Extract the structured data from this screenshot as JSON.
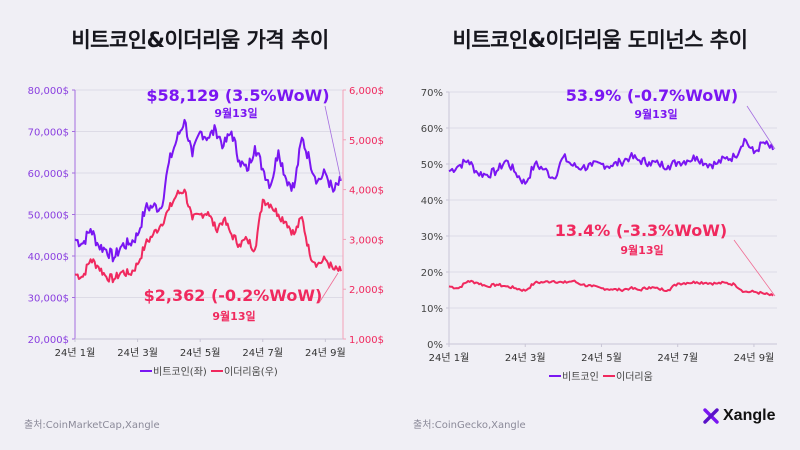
{
  "colors": {
    "bitcoin": "#7a16f2",
    "ethereum": "#f0295e",
    "background": "#f0eff5",
    "grid": "#dddbe6",
    "axis": "#c9c6d6"
  },
  "footer": {
    "source_left": "출처:CoinMarketCap,Xangle",
    "source_right": "출처:CoinGecko,Xangle",
    "logo_icon": "x-logo-icon",
    "logo_text": "Xangle"
  },
  "chart_data": [
    {
      "type": "line",
      "title": "비트코인&이더리움 가격 추이",
      "x_tick_labels": [
        "24년 1월",
        "24년 3월",
        "24년 5월",
        "24년 7월",
        "24년 9월"
      ],
      "x_range": [
        "2024-01-01",
        "2024-09-13"
      ],
      "y_left": {
        "label": "비트코인",
        "range": [
          20000,
          80000
        ],
        "ticks": [
          "20,000$",
          "30,000$",
          "40,000$",
          "50,000$",
          "60,000$",
          "70,000$",
          "80,000$"
        ]
      },
      "y_right": {
        "label": "이더리움",
        "range": [
          1000,
          6000
        ],
        "ticks": [
          "1,000$",
          "2,000$",
          "3,000$",
          "4,000$",
          "5,000$",
          "6,000$"
        ]
      },
      "grid": true,
      "legend_position": "bottom-center",
      "legend": [
        "비트코인(좌)",
        "이더리움(우)"
      ],
      "series": [
        {
          "name": "비트코인(좌)",
          "axis": "left",
          "x": [
            0,
            0.25,
            0.5,
            0.75,
            1,
            1.25,
            1.5,
            1.75,
            2,
            2.25,
            2.5,
            2.75,
            3,
            3.25,
            3.5,
            3.75,
            4,
            4.25,
            4.5,
            4.75,
            5,
            5.25,
            5.5,
            5.75,
            6,
            6.25,
            6.5,
            6.75,
            7,
            7.25,
            7.5,
            7.75,
            8,
            8.25,
            8.5
          ],
          "values": [
            44000,
            43000,
            46500,
            42500,
            41500,
            39500,
            42500,
            43000,
            45000,
            51500,
            52000,
            51500,
            62500,
            68000,
            72800,
            64000,
            70000,
            68500,
            70500,
            66500,
            70000,
            63000,
            60500,
            66500,
            61000,
            57000,
            65500,
            58500,
            56500,
            68500,
            63000,
            58000,
            60000,
            55500,
            58129
          ]
        },
        {
          "name": "이더리움(우)",
          "axis": "right",
          "x": [
            0,
            0.25,
            0.5,
            0.75,
            1,
            1.25,
            1.5,
            1.75,
            2,
            2.25,
            2.5,
            2.75,
            3,
            3.25,
            3.5,
            3.75,
            4,
            4.25,
            4.5,
            4.75,
            5,
            5.25,
            5.5,
            5.75,
            6,
            6.25,
            6.5,
            6.75,
            7,
            7.25,
            7.5,
            7.75,
            8,
            8.25,
            8.5
          ],
          "values": [
            2300,
            2250,
            2600,
            2450,
            2250,
            2200,
            2350,
            2300,
            2500,
            2900,
            3100,
            3300,
            3600,
            3900,
            4000,
            3400,
            3500,
            3550,
            3200,
            3400,
            3100,
            2900,
            3000,
            2800,
            3800,
            3700,
            3500,
            3350,
            3100,
            3450,
            2700,
            2500,
            2600,
            2400,
            2362
          ]
        }
      ],
      "annotations": [
        {
          "series": "비트코인(좌)",
          "text": "$58,129 (3.5%WoW)",
          "date": "9월13일"
        },
        {
          "series": "이더리움(우)",
          "text": "$2,362 (-0.2%WoW)",
          "date": "9월13일"
        }
      ]
    },
    {
      "type": "line",
      "title": "비트코인&이더리움 도미넌스 추이",
      "x_tick_labels": [
        "24년 1월",
        "24년 3월",
        "24년 5월",
        "24년 7월",
        "24년 9월"
      ],
      "x_range": [
        "2024-01-01",
        "2024-09-13"
      ],
      "y_left": {
        "label": "도미넌스",
        "range": [
          0,
          70
        ],
        "ticks": [
          "0%",
          "10%",
          "20%",
          "30%",
          "40%",
          "50%",
          "60%",
          "70%"
        ]
      },
      "grid": true,
      "legend_position": "bottom-center",
      "legend": [
        "비트코인",
        "이더리움"
      ],
      "series": [
        {
          "name": "비트코인",
          "x": [
            0,
            0.25,
            0.5,
            0.75,
            1,
            1.25,
            1.5,
            1.75,
            2,
            2.25,
            2.5,
            2.75,
            3,
            3.25,
            3.5,
            3.75,
            4,
            4.25,
            4.5,
            4.75,
            5,
            5.25,
            5.5,
            5.75,
            6,
            6.25,
            6.5,
            6.75,
            7,
            7.25,
            7.5,
            7.75,
            8,
            8.25,
            8.5
          ],
          "values": [
            48,
            49.5,
            51,
            47.5,
            47,
            48,
            51,
            47.5,
            44.5,
            50,
            48.5,
            46,
            52,
            49.5,
            49,
            49.5,
            50,
            49.5,
            50.5,
            52,
            51,
            50.5,
            50,
            49.5,
            50.5,
            51,
            52,
            50,
            50,
            51.5,
            52,
            57,
            53,
            56,
            53.9
          ]
        },
        {
          "name": "이더리움",
          "x": [
            0,
            0.25,
            0.5,
            0.75,
            1,
            1.25,
            1.5,
            1.75,
            2,
            2.25,
            2.5,
            2.75,
            3,
            3.25,
            3.5,
            3.75,
            4,
            4.25,
            4.5,
            4.75,
            5,
            5.25,
            5.5,
            5.75,
            6,
            6.25,
            6.5,
            6.75,
            7,
            7.25,
            7.5,
            7.75,
            8,
            8.25,
            8.5
          ],
          "values": [
            16,
            15.5,
            17.5,
            17,
            16,
            16.5,
            16,
            15.5,
            14.8,
            17,
            17.2,
            17.5,
            17,
            17.5,
            16.5,
            16,
            15.5,
            15.2,
            15,
            15.5,
            15,
            15.8,
            15.3,
            15,
            16.8,
            17,
            17.2,
            17,
            16.8,
            17,
            16.5,
            14.5,
            14.5,
            14,
            13.4
          ]
        }
      ],
      "annotations": [
        {
          "series": "비트코인",
          "text": "53.9% (-0.7%WoW)",
          "date": "9월13일"
        },
        {
          "series": "이더리움",
          "text": "13.4% (-3.3%WoW)",
          "date": "9월13일"
        }
      ]
    }
  ]
}
